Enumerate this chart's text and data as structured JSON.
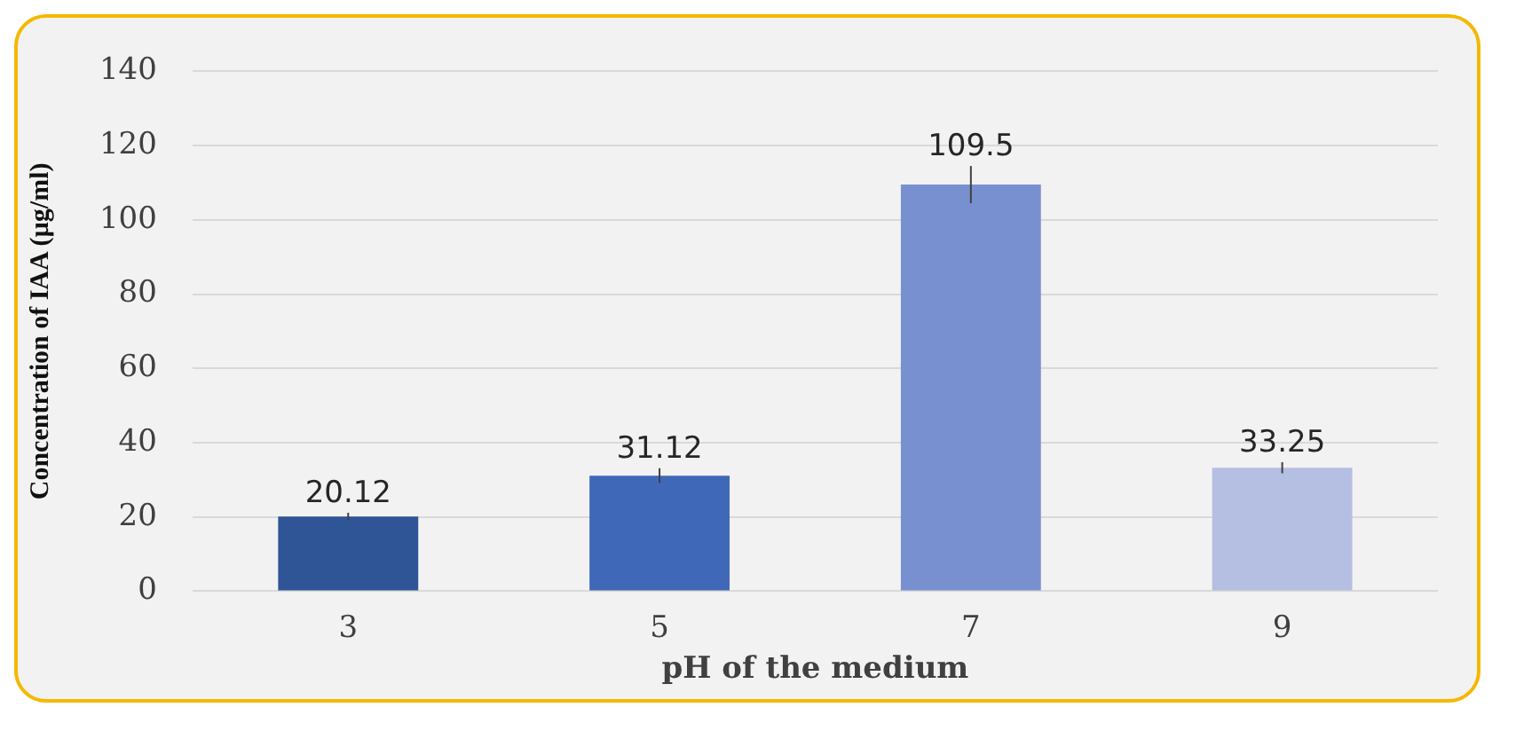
{
  "chart_data": {
    "type": "bar",
    "xlabel": "pH of the medium",
    "ylabel": "Concentration of IAA (µg/ml)",
    "categories": [
      "3",
      "5",
      "7",
      "9"
    ],
    "values": [
      20.12,
      31.12,
      109.5,
      33.25
    ],
    "colors": [
      "#2f5597",
      "#4068b8",
      "#7990d0",
      "#b4bfe2"
    ],
    "errors": [
      1,
      2,
      5,
      1.5
    ],
    "data_labels": true,
    "ylim": [
      0,
      140
    ],
    "yticks": [
      0,
      20,
      40,
      60,
      80,
      100,
      120,
      140
    ],
    "grid": "y",
    "legend": false
  }
}
